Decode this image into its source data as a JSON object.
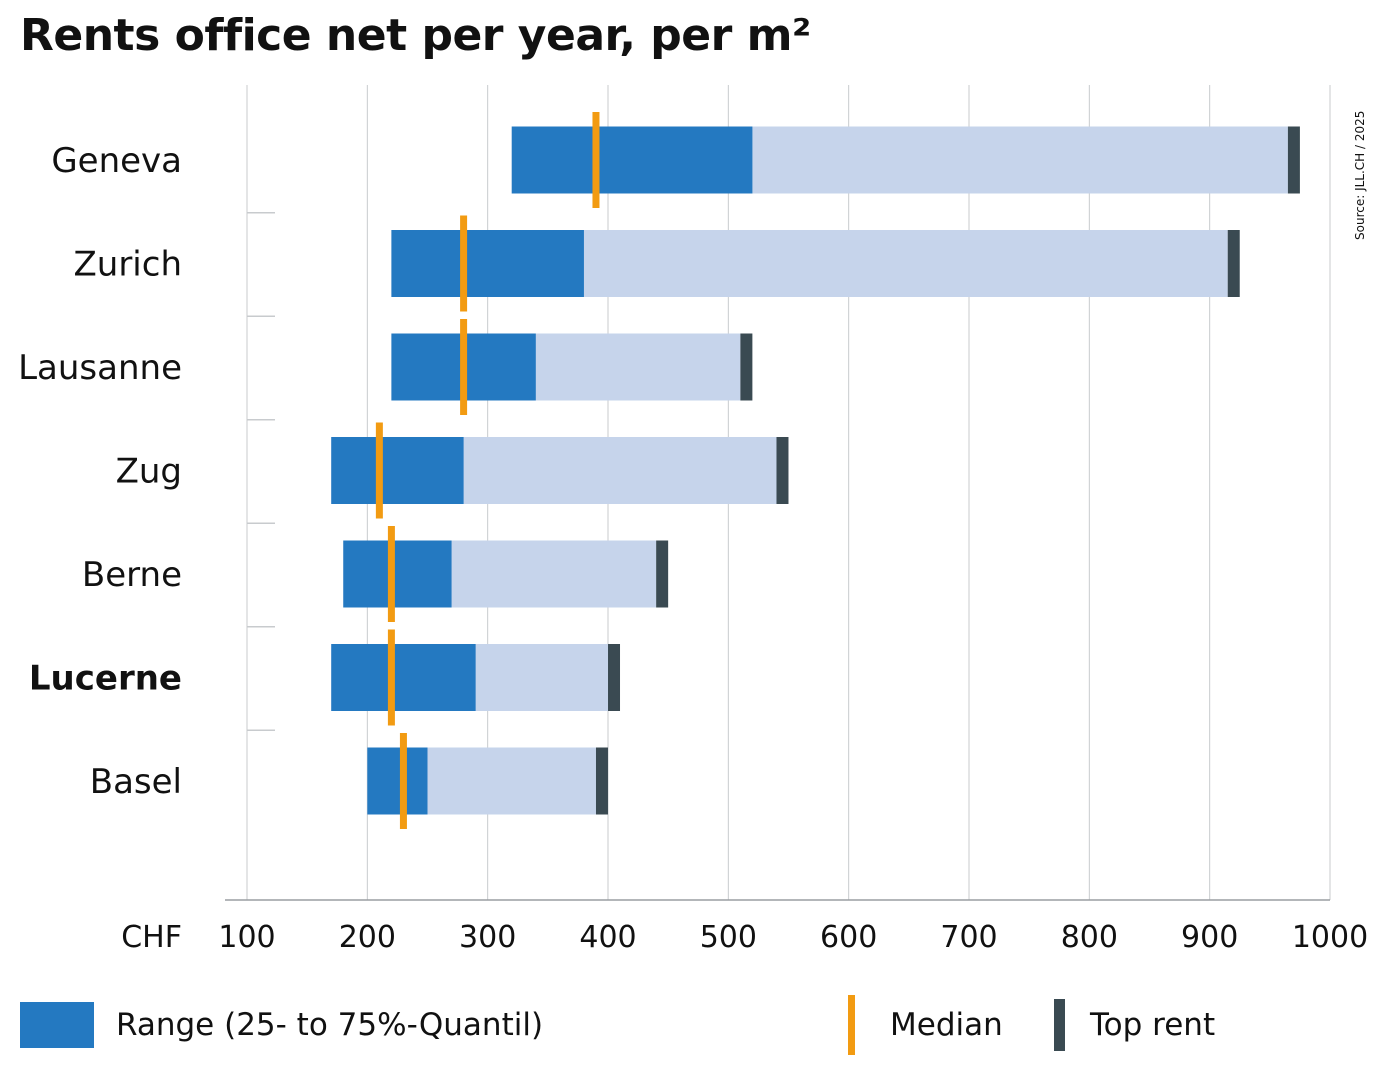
{
  "title": "Rents office net per year, per m²",
  "source": "Source: JLL.CH / 2025",
  "colors": {
    "range": "#2479c1",
    "total": "#c6d4eb",
    "median": "#f29b12",
    "top": "#3a4a52",
    "grid": "#c8cbce",
    "axis": "#9a9ea2"
  },
  "legend": {
    "range": "Range (25- to 75%-Quantil)",
    "median": "Median",
    "top": "Top rent"
  },
  "chart_data": {
    "type": "bar",
    "orientation": "horizontal",
    "xlabel": "CHF",
    "xlim": [
      100,
      1000
    ],
    "x_ticks": [
      100,
      200,
      300,
      400,
      500,
      600,
      700,
      800,
      900,
      1000
    ],
    "grid": true,
    "legend_position": "bottom",
    "highlight": "Lucerne",
    "categories": [
      "Geneva",
      "Zurich",
      "Lausanne",
      "Zug",
      "Berne",
      "Lucerne",
      "Basel"
    ],
    "series": [
      {
        "name": "Range (25- to 75%-Quantil)",
        "low": [
          320,
          220,
          220,
          170,
          180,
          170,
          200
        ],
        "high": [
          520,
          380,
          340,
          280,
          270,
          290,
          250
        ]
      },
      {
        "name": "Median",
        "values": [
          390,
          280,
          280,
          210,
          220,
          220,
          230
        ]
      },
      {
        "name": "Top rent",
        "values": [
          970,
          920,
          515,
          545,
          445,
          405,
          395
        ]
      }
    ],
    "max_values": [
      965,
      915,
      510,
      540,
      440,
      400,
      390
    ]
  }
}
